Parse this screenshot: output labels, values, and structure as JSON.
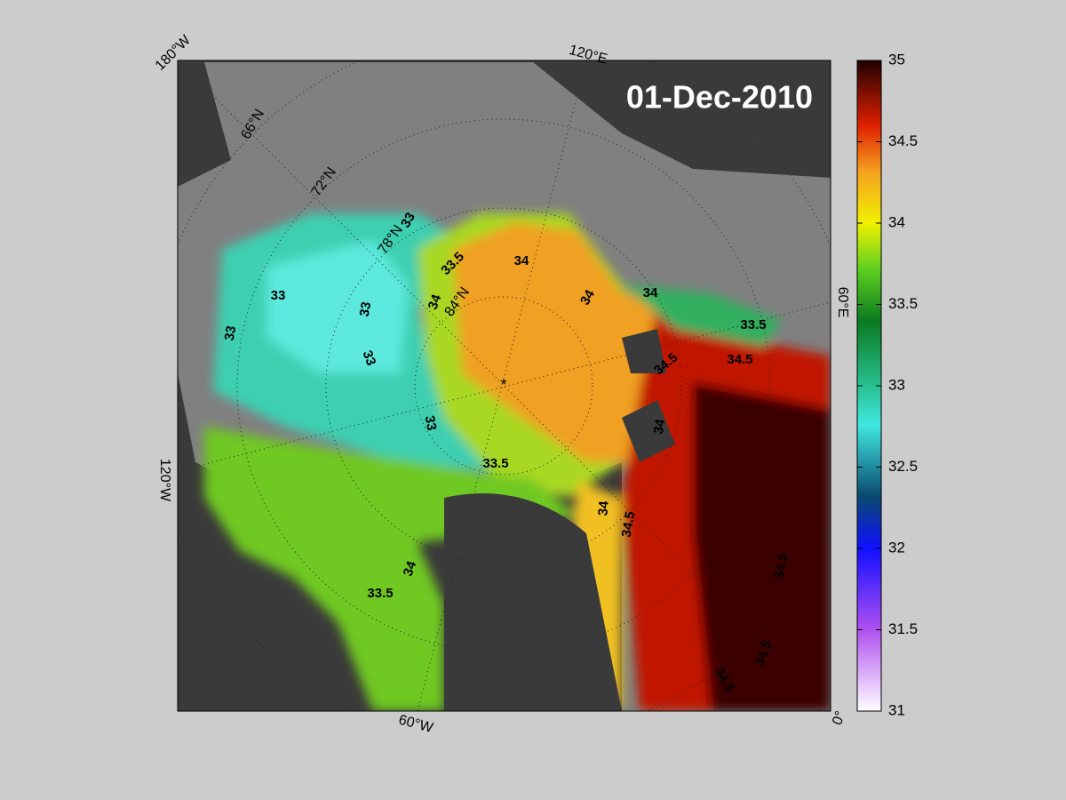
{
  "title": "01-Dec-2010",
  "map": {
    "lon_labels": [
      "180°W",
      "120°E",
      "60°E",
      "0°",
      "60°W",
      "120°W"
    ],
    "lat_labels": [
      "66°N",
      "72°N",
      "78°N",
      "84°N"
    ],
    "contour_labels": [
      "33",
      "33",
      "33",
      "33",
      "33",
      "33",
      "33.5",
      "34",
      "34",
      "34",
      "34",
      "33.5",
      "34.5",
      "34.5",
      "34",
      "33.5",
      "34",
      "34.5",
      "34.5",
      "33.5",
      "34",
      "34.5",
      "34.5"
    ]
  },
  "colorbar": {
    "lim": [
      31,
      35
    ],
    "ticks": [
      31,
      31.5,
      32,
      32.5,
      33,
      33.5,
      34,
      34.5,
      35
    ]
  }
}
